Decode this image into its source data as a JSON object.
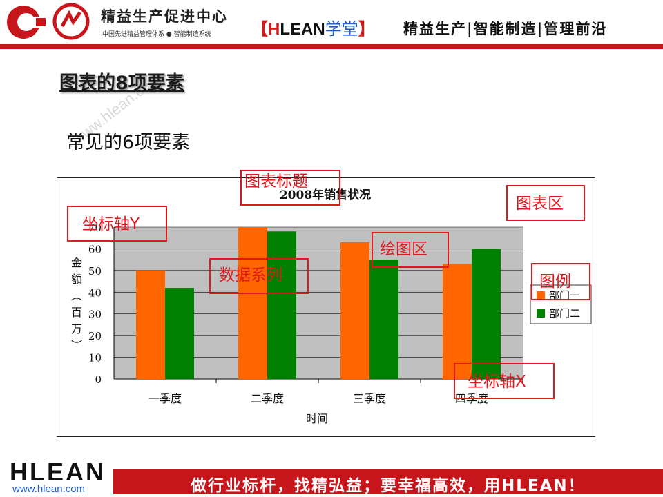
{
  "header": {
    "brand_name": "精益生产促进中心",
    "brand_sub": "中国先进精益管理体系 ● 智能制造系统",
    "mid_open": "【",
    "mid_h": "H",
    "mid_lean": "LEAN",
    "mid_xuetang": "学堂",
    "mid_close": "】",
    "right_tagline": "精益生产|智能制造|管理前沿"
  },
  "slide": {
    "title": "图表的8项要素",
    "subtitle": "常见的6项要素",
    "watermark": "www.hlean.com"
  },
  "annotations": {
    "chart_title": "图表标题",
    "chart_area": "图表区",
    "y_axis": "坐标轴Y",
    "plot_area": "绘图区",
    "data_series": "数据系列",
    "legend": "图例",
    "x_axis": "坐标轴X"
  },
  "chart_data": {
    "type": "bar",
    "title": "2008年销售状况",
    "xlabel": "时间",
    "ylabel": "金额（百万）",
    "ylim": [
      0,
      70
    ],
    "yticks": [
      0,
      10,
      20,
      30,
      40,
      50,
      60,
      70
    ],
    "categories": [
      "一季度",
      "二季度",
      "三季度",
      "四季度"
    ],
    "series": [
      {
        "name": "部门一",
        "values": [
          50,
          70,
          63,
          53
        ],
        "color": "#ff6600"
      },
      {
        "name": "部门二",
        "values": [
          42,
          68,
          55,
          60
        ],
        "color": "#008000"
      }
    ],
    "legend_position": "right",
    "plot_background": "#c0c0c0",
    "grid": true
  },
  "footer": {
    "logo": "HLEAN",
    "url": "www.hlean.com",
    "slogan": "做行业标杆，找精弘益；要幸福高效，用HLEAN！"
  },
  "colors": {
    "brand_red": "#c7161b",
    "annotation_red": "#e0191f",
    "link_blue": "#1a5ccf"
  }
}
